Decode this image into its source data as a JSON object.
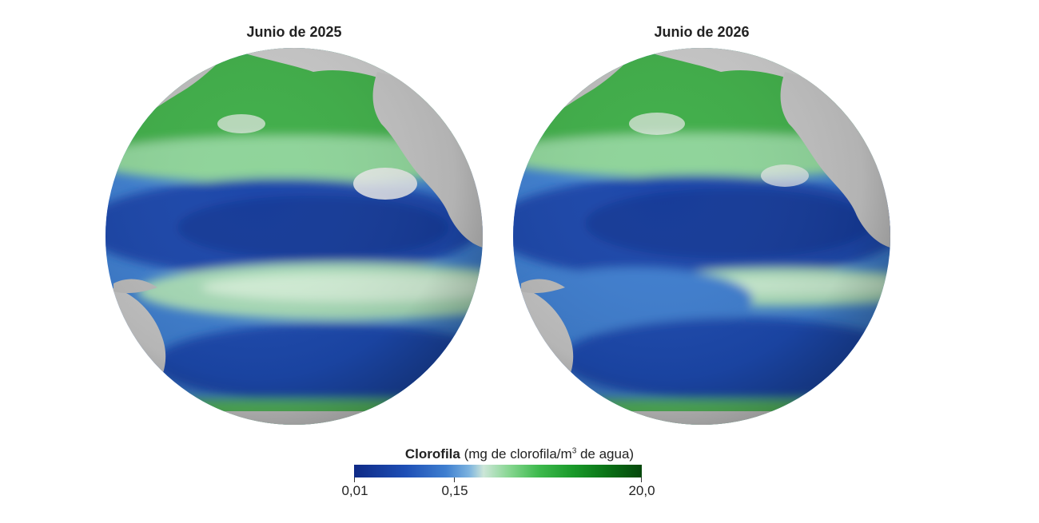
{
  "panels": [
    {
      "title": "Junio de 2025"
    },
    {
      "title": "Junio de 2026"
    }
  ],
  "legend": {
    "title_bold": "Clorofila",
    "title_rest": " (mg de clorofila/m",
    "title_sup": "3",
    "title_end": " de agua)",
    "ticks": [
      "0,01",
      "0,15",
      "20,0"
    ]
  },
  "colors": {
    "land": "#c8c8c8",
    "low_chlorophyll": "#0f2a86",
    "mid_chlorophyll": "#cce6d8",
    "high_chlorophyll": "#05470c"
  }
}
